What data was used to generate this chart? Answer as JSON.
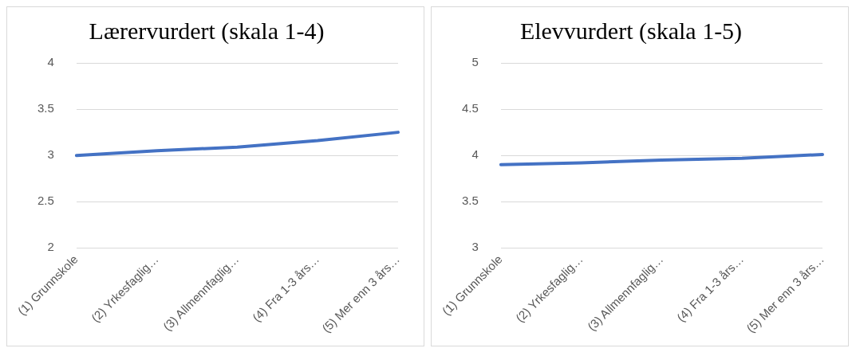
{
  "chart_data": [
    {
      "type": "line",
      "title": "Lærervurdert (skala 1-4)",
      "categories": [
        "(1) Grunnskole",
        "(2) Yrkesfaglig…",
        "(3) Allmennfaglig…",
        "(4) Fra 1-3 års…",
        "(5) Mer enn 3 års…"
      ],
      "series": [
        {
          "color": "#4472c4",
          "values": [
            3.0,
            3.05,
            3.09,
            3.16,
            3.25
          ]
        }
      ],
      "ylim": [
        2,
        4
      ],
      "yticks": [
        2,
        2.5,
        3,
        3.5,
        4
      ],
      "grid": "y",
      "marker": "none"
    },
    {
      "type": "line",
      "title": "Elevvurdert (skala 1-5)",
      "categories": [
        "(1) Grunnskole",
        "(2) Yrkesfaglig…",
        "(3) Allmennfaglig…",
        "(4) Fra 1-3 års…",
        "(5) Mer enn 3 års…"
      ],
      "series": [
        {
          "color": "#4472c4",
          "values": [
            3.9,
            3.92,
            3.95,
            3.97,
            4.01
          ]
        }
      ],
      "ylim": [
        3,
        5
      ],
      "yticks": [
        3,
        3.5,
        4,
        4.5,
        5
      ],
      "grid": "y",
      "marker": "none"
    }
  ]
}
